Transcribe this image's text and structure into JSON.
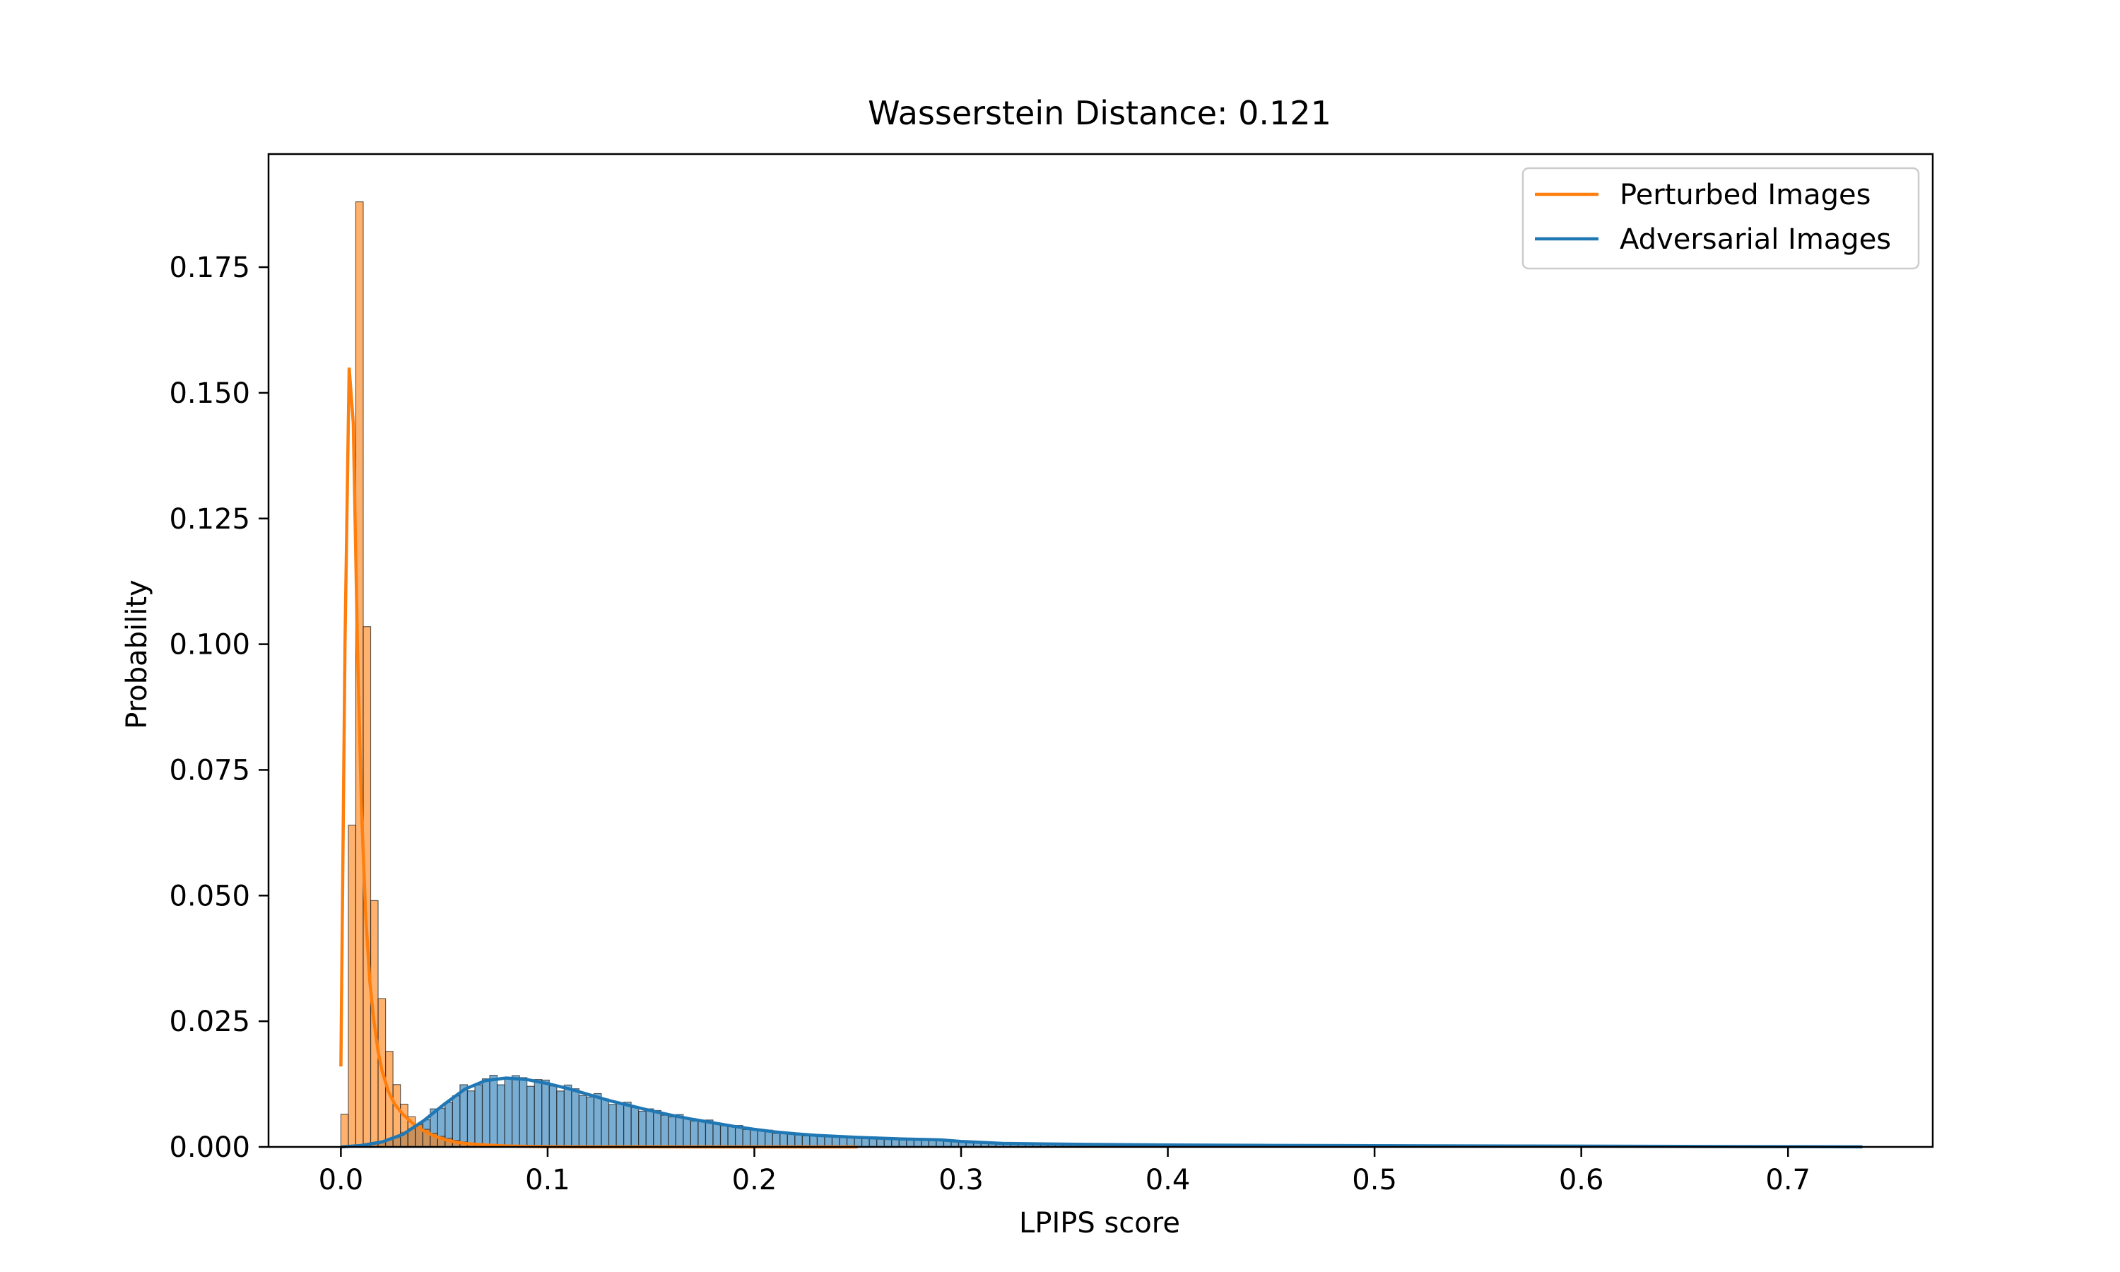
{
  "chart_data": {
    "type": "histogram",
    "title": "Wasserstein Distance: 0.121",
    "xlabel": "LPIPS score",
    "ylabel": "Probability",
    "xlim": [
      -0.035,
      0.77
    ],
    "ylim": [
      0,
      0.1975
    ],
    "xticks": [
      "0.0",
      "0.1",
      "0.2",
      "0.3",
      "0.4",
      "0.5",
      "0.6",
      "0.7"
    ],
    "yticks": [
      "0.000",
      "0.025",
      "0.050",
      "0.075",
      "0.100",
      "0.125",
      "0.150",
      "0.175"
    ],
    "grid": false,
    "legend_position": "top-right",
    "bin_width": 0.0036,
    "series": [
      {
        "name": "Perturbed Images",
        "color": "#ff7f0e",
        "bin_start": 0.0,
        "hist_values": [
          0.0065,
          0.064,
          0.188,
          0.1035,
          0.049,
          0.0295,
          0.019,
          0.0124,
          0.0085,
          0.006,
          0.0045,
          0.0035,
          0.0027,
          0.0021,
          0.0017,
          0.0013,
          0.001,
          0.0008,
          0.0006,
          0.0005,
          0.0004,
          0.0003,
          0.0002,
          0.00015,
          0.0001
        ],
        "kde_x": [
          0.0,
          0.002,
          0.004,
          0.006,
          0.008,
          0.01,
          0.012,
          0.014,
          0.016,
          0.018,
          0.02,
          0.023,
          0.026,
          0.03,
          0.035,
          0.04,
          0.045,
          0.05,
          0.055,
          0.06,
          0.07,
          0.08,
          0.09,
          0.1,
          0.12,
          0.15,
          0.2,
          0.25
        ],
        "kde_y": [
          0.016,
          0.1,
          0.155,
          0.144,
          0.1,
          0.067,
          0.046,
          0.033,
          0.025,
          0.019,
          0.015,
          0.011,
          0.0085,
          0.0065,
          0.0046,
          0.0032,
          0.0022,
          0.0015,
          0.001,
          0.0007,
          0.0004,
          0.0002,
          0.0001,
          5e-05,
          2e-05,
          1e-05,
          0.0,
          0.0
        ]
      },
      {
        "name": "Adversarial Images",
        "color": "#1f77b4",
        "kde_x": [
          0.0,
          0.01,
          0.02,
          0.03,
          0.04,
          0.05,
          0.06,
          0.07,
          0.08,
          0.09,
          0.1,
          0.11,
          0.12,
          0.13,
          0.14,
          0.15,
          0.16,
          0.17,
          0.18,
          0.19,
          0.2,
          0.21,
          0.22,
          0.23,
          0.25,
          0.27,
          0.29,
          0.3,
          0.32,
          0.34,
          0.36,
          0.4,
          0.45,
          0.5,
          0.55,
          0.6,
          0.65,
          0.7,
          0.736
        ],
        "kde_y": [
          0.0,
          0.0003,
          0.001,
          0.0025,
          0.0052,
          0.0085,
          0.0115,
          0.0132,
          0.0137,
          0.0134,
          0.0126,
          0.0116,
          0.0104,
          0.0092,
          0.0082,
          0.0072,
          0.0063,
          0.0055,
          0.0048,
          0.0041,
          0.0035,
          0.003,
          0.0026,
          0.0023,
          0.0019,
          0.0016,
          0.0014,
          0.0011,
          0.0007,
          0.0006,
          0.0005,
          0.0004,
          0.0003,
          0.00025,
          0.0002,
          0.00015,
          0.0001,
          5e-05,
          2e-05
        ]
      }
    ]
  }
}
